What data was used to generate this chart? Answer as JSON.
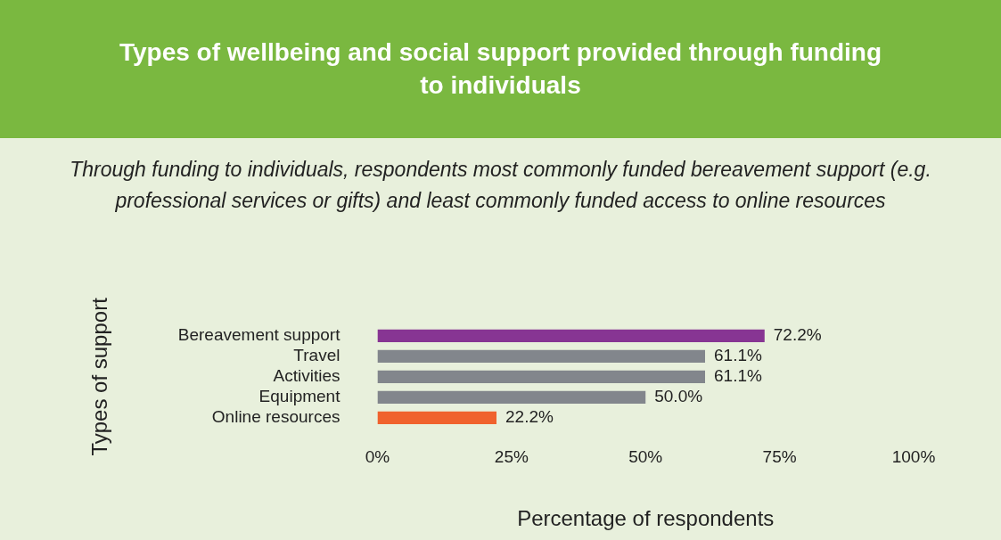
{
  "chart_data": {
    "type": "bar",
    "orientation": "horizontal",
    "title": "Types of wellbeing and social support provided through funding to individuals",
    "subtitle": "Through funding to individuals, respondents most commonly funded bereavement support (e.g. professional services or gifts) and least commonly funded access to online resources",
    "xlabel": "Percentage of respondents",
    "ylabel": "Types of support",
    "categories": [
      "Bereavement support",
      "Travel",
      "Activities",
      "Equipment",
      "Online resources"
    ],
    "values": [
      72.2,
      61.1,
      61.1,
      50.0,
      22.2
    ],
    "colors": [
      "#873593",
      "#82868c",
      "#82868c",
      "#82868c",
      "#f0622d"
    ],
    "value_labels": [
      "72.2%",
      "61.1%",
      "61.1%",
      "50.0%",
      "22.2%"
    ],
    "xlim": [
      0,
      100
    ],
    "xticks": [
      {
        "value": 0,
        "label": "0%"
      },
      {
        "value": 25,
        "label": "25%"
      },
      {
        "value": 50,
        "label": "50%"
      },
      {
        "value": 75,
        "label": "75%"
      },
      {
        "value": 100,
        "label": "100%"
      }
    ],
    "grid": false,
    "legend": false
  }
}
